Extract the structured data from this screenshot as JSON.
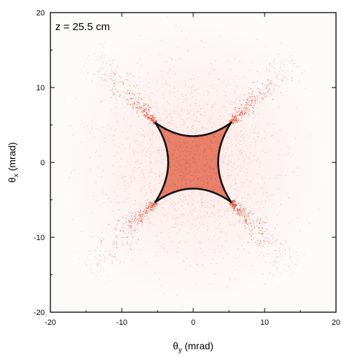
{
  "chart_data": {
    "type": "scatter",
    "title": "",
    "annotation": "z = 25.5 cm",
    "xlabel_symbol": "θ",
    "xlabel_sub": "y",
    "xlabel_unit": " (mrad)",
    "ylabel_symbol": "θ",
    "ylabel_sub": "x",
    "ylabel_unit": " (mrad)",
    "xlim": [
      -20,
      20
    ],
    "ylim": [
      -20,
      20
    ],
    "xticks": [
      -20,
      -10,
      0,
      10,
      20
    ],
    "yticks": [
      -20,
      -10,
      0,
      10,
      20
    ],
    "grid": false,
    "colors": {
      "scatter": "#e8513a",
      "fill": "#e8806a",
      "outline": "#111111",
      "frame": "#000000"
    },
    "caustic_outline": {
      "corners": [
        [
          -5.3,
          5.3
        ],
        [
          5.3,
          5.3
        ],
        [
          5.3,
          -5.3
        ],
        [
          -5.3,
          -5.3
        ]
      ],
      "edge_midpoint_inset": 3.5
    },
    "features": [
      "dense uniform fill inside the caustic astroid",
      "bright streaks extending diagonally from each corner",
      "diffuse background scatter over the full frame"
    ]
  }
}
